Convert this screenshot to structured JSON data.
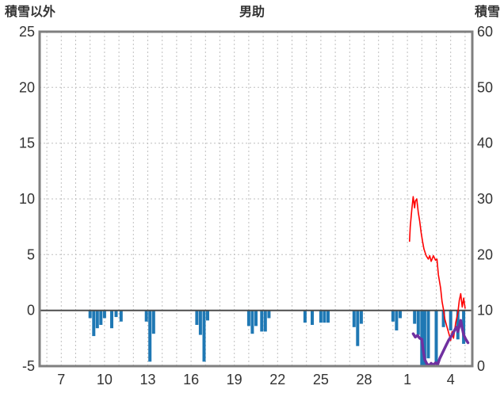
{
  "chart_data": {
    "type": "mixed",
    "title": "男助",
    "left_axis": {
      "label": "積雪以外",
      "min": -5,
      "max": 25,
      "ticks": [
        25,
        20,
        15,
        10,
        5,
        0,
        -5
      ]
    },
    "right_axis": {
      "label": "積雪",
      "min": 0,
      "max": 60,
      "ticks": [
        60,
        50,
        40,
        30,
        20,
        10,
        0
      ]
    },
    "x_axis": {
      "min": 5.5,
      "max": 35.5,
      "tick_days": [
        7,
        10,
        13,
        16,
        19,
        22,
        25,
        28,
        31,
        34
      ],
      "tick_labels": [
        "7",
        "10",
        "13",
        "16",
        "19",
        "22",
        "25",
        "28",
        "1",
        "4"
      ],
      "grid_every_day": true
    },
    "style": {
      "border": "#7f7f7f",
      "grid": "#bfbfbf",
      "zero_line": "#4d4d4d",
      "text": "#333333",
      "background": "#ffffff"
    },
    "series": [
      {
        "name": "precipitation-bars",
        "type": "bar",
        "axis": "left",
        "color": "#1F78B4",
        "points": [
          [
            9.0,
            -0.7
          ],
          [
            9.25,
            -2.3
          ],
          [
            9.5,
            -1.6
          ],
          [
            9.75,
            -1.3
          ],
          [
            10.0,
            -0.7
          ],
          [
            10.5,
            -1.6
          ],
          [
            10.8,
            -0.6
          ],
          [
            11.15,
            -1.0
          ],
          [
            12.9,
            -1.0
          ],
          [
            13.15,
            -4.6
          ],
          [
            13.4,
            -2.1
          ],
          [
            16.4,
            -1.3
          ],
          [
            16.65,
            -2.2
          ],
          [
            16.9,
            -4.6
          ],
          [
            17.15,
            -0.9
          ],
          [
            20.0,
            -1.4
          ],
          [
            20.25,
            -2.1
          ],
          [
            20.5,
            -1.4
          ],
          [
            20.9,
            -1.9
          ],
          [
            21.15,
            -1.9
          ],
          [
            21.4,
            -0.7
          ],
          [
            23.9,
            -1.1
          ],
          [
            24.4,
            -1.3
          ],
          [
            25.0,
            -1.1
          ],
          [
            25.25,
            -1.1
          ],
          [
            25.5,
            -1.1
          ],
          [
            27.3,
            -1.5
          ],
          [
            27.55,
            -3.2
          ],
          [
            27.8,
            -1.2
          ],
          [
            30.0,
            -1.0
          ],
          [
            30.25,
            -1.8
          ],
          [
            30.5,
            -0.7
          ],
          [
            31.5,
            -1.2
          ],
          [
            31.75,
            -2.2
          ],
          [
            32.0,
            -5.0
          ],
          [
            32.2,
            -4.9
          ],
          [
            32.45,
            -4.3
          ],
          [
            33.0,
            -4.8
          ],
          [
            33.5,
            -1.5
          ],
          [
            34.0,
            -1.8
          ],
          [
            34.5,
            -2.6
          ],
          [
            34.9,
            -3.0
          ]
        ]
      },
      {
        "name": "temperature-line",
        "type": "line",
        "axis": "left",
        "color": "#FF0000",
        "width": 1.6,
        "points": [
          [
            31.15,
            6.2
          ],
          [
            31.2,
            7.5
          ],
          [
            31.3,
            9.0
          ],
          [
            31.4,
            10.2
          ],
          [
            31.5,
            9.2
          ],
          [
            31.55,
            9.8
          ],
          [
            31.65,
            10.0
          ],
          [
            31.75,
            8.8
          ],
          [
            31.85,
            8.0
          ],
          [
            31.95,
            7.0
          ],
          [
            32.05,
            6.2
          ],
          [
            32.15,
            5.5
          ],
          [
            32.3,
            4.9
          ],
          [
            32.45,
            4.6
          ],
          [
            32.55,
            4.9
          ],
          [
            32.65,
            4.4
          ],
          [
            32.8,
            4.9
          ],
          [
            32.95,
            4.5
          ],
          [
            33.05,
            4.6
          ],
          [
            33.15,
            3.2
          ],
          [
            33.3,
            2.0
          ],
          [
            33.4,
            0.8
          ],
          [
            33.5,
            0.1
          ],
          [
            33.6,
            -0.8
          ],
          [
            33.75,
            -1.5
          ],
          [
            33.9,
            -2.2
          ],
          [
            34.0,
            -2.7
          ],
          [
            34.1,
            -1.9
          ],
          [
            34.2,
            -2.5
          ],
          [
            34.35,
            -1.1
          ],
          [
            34.5,
            -0.2
          ],
          [
            34.6,
            0.9
          ],
          [
            34.7,
            1.5
          ],
          [
            34.8,
            0.3
          ],
          [
            34.9,
            1.1
          ],
          [
            35.0,
            0.2
          ]
        ]
      },
      {
        "name": "snow-depth-line",
        "type": "line",
        "axis": "right",
        "color": "#7030A0",
        "width": 3.5,
        "points": [
          [
            31.4,
            5.8
          ],
          [
            31.55,
            5.2
          ],
          [
            31.7,
            5.5
          ],
          [
            31.85,
            5.0
          ],
          [
            32.0,
            4.8
          ],
          [
            32.1,
            2.8
          ],
          [
            32.2,
            1.2
          ],
          [
            32.35,
            0.4
          ],
          [
            32.5,
            0.1
          ],
          [
            32.65,
            0.5
          ],
          [
            32.8,
            0.2
          ],
          [
            32.95,
            0.6
          ],
          [
            33.1,
            0.3
          ],
          [
            33.25,
            1.4
          ],
          [
            33.4,
            2.2
          ],
          [
            33.55,
            3.0
          ],
          [
            33.7,
            3.8
          ],
          [
            33.85,
            4.6
          ],
          [
            34.0,
            5.2
          ],
          [
            34.15,
            5.8
          ],
          [
            34.3,
            6.6
          ],
          [
            34.4,
            7.0
          ],
          [
            34.5,
            6.2
          ],
          [
            34.6,
            7.2
          ],
          [
            34.7,
            8.2
          ],
          [
            34.8,
            6.8
          ],
          [
            34.9,
            5.6
          ],
          [
            35.05,
            4.8
          ],
          [
            35.2,
            4.2
          ]
        ]
      }
    ]
  }
}
